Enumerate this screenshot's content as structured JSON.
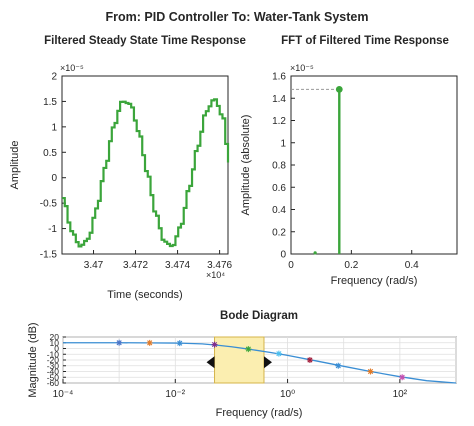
{
  "window_title": "From: PID Controller  To: Water-Tank System",
  "colors": {
    "response": "#3ba53b",
    "bode": "#3a8ed4",
    "band_fill": "#fbeeb0",
    "band_edge": "#d4b44a",
    "axis": "#262626"
  },
  "chart_data": [
    {
      "type": "line",
      "title": "Filtered Steady State Time Response",
      "xlabel": "Time (seconds)",
      "ylabel": "Amplitude",
      "x_exponent_label": "×10⁴",
      "y_exponent_label": "×10⁻⁵",
      "xlim": [
        3.4685,
        3.4764
      ],
      "ylim": [
        -1.5,
        2
      ],
      "xticks": [
        3.47,
        3.472,
        3.474,
        3.476
      ],
      "xtick_labels": [
        "3.47",
        "3.472",
        "3.474",
        "3.476"
      ],
      "yticks": [
        -1.5,
        -1,
        -0.5,
        0,
        0.5,
        1,
        1.5,
        2
      ],
      "ytick_labels": [
        "-1.5",
        "-1",
        "-0.5",
        "0",
        "0.5",
        "1",
        "1.5",
        "2"
      ],
      "series": [
        {
          "style": "staircase",
          "x": [
            3.4685,
            3.4689,
            3.4693,
            3.4697,
            3.4701,
            3.4705,
            3.4709,
            3.4713,
            3.4717,
            3.4721,
            3.4725,
            3.4729,
            3.4733,
            3.4737,
            3.4741,
            3.4745,
            3.4749,
            3.4753,
            3.4757,
            3.4761,
            3.4764
          ],
          "y": [
            -0.4,
            -1.05,
            -1.35,
            -1.2,
            -0.6,
            0.2,
            1.0,
            1.5,
            1.45,
            0.9,
            0.1,
            -0.7,
            -1.25,
            -1.35,
            -0.95,
            -0.2,
            0.6,
            1.3,
            1.55,
            1.2,
            0.3
          ]
        }
      ]
    },
    {
      "type": "stem",
      "title": "FFT of Filtered Time Response",
      "xlabel": "Frequency (rad/s)",
      "ylabel": "Amplitude (absolute)",
      "y_exponent_label": "×10⁻⁵",
      "xlim": [
        0,
        0.55
      ],
      "ylim": [
        0,
        1.6
      ],
      "xticks": [
        0,
        0.2,
        0.4
      ],
      "xtick_labels": [
        "0",
        "0.2",
        "0.4"
      ],
      "yticks": [
        0,
        0.2,
        0.4,
        0.6,
        0.8,
        1,
        1.2,
        1.4,
        1.6
      ],
      "ytick_labels": [
        "0",
        "0.2",
        "0.4",
        "0.6",
        "0.8",
        "1",
        "1.2",
        "1.4",
        "1.6"
      ],
      "stems": [
        {
          "x": 0.08,
          "y": 0.01
        },
        {
          "x": 0.16,
          "y": 1.48
        }
      ],
      "reference_level": 1.48
    },
    {
      "type": "line",
      "title": "Bode Diagram",
      "xlabel": "Frequency (rad/s)",
      "ylabel": "Magnitude (dB)",
      "xscale": "log",
      "xlim": [
        0.0001,
        1000
      ],
      "ylim": [
        -60,
        20
      ],
      "xticks": [
        0.0001,
        0.01,
        1,
        100
      ],
      "xtick_labels": [
        "10⁻⁴",
        "10⁻²",
        "10⁰",
        "10²"
      ],
      "yticks": [
        -60,
        -50,
        -40,
        -30,
        -20,
        -10,
        0,
        10,
        20
      ],
      "ytick_labels": [
        "-60",
        "-50",
        "-40",
        "-30",
        "-20",
        "-10",
        "0",
        "10",
        "20"
      ],
      "band": [
        0.05,
        0.38
      ],
      "series": [
        {
          "x": [
            0.0001,
            0.001,
            0.003,
            0.01,
            0.03,
            0.06,
            0.1,
            0.2,
            0.5,
            1,
            3,
            10,
            30,
            100,
            300,
            1000
          ],
          "y": [
            10,
            10,
            9.8,
            9.5,
            8,
            5.5,
            3,
            -1,
            -7,
            -12,
            -21,
            -31,
            -40,
            -49,
            -56,
            -62
          ]
        }
      ],
      "markers": [
        {
          "x": 0.001,
          "y": 10,
          "color": "#4b76c8"
        },
        {
          "x": 0.0035,
          "y": 9.8,
          "color": "#e07b2a"
        },
        {
          "x": 0.012,
          "y": 9.3,
          "color": "#3a8ed4"
        },
        {
          "x": 0.05,
          "y": 6.8,
          "color": "#7e2f8e"
        },
        {
          "x": 0.2,
          "y": -1,
          "color": "#3ba53b"
        },
        {
          "x": 0.7,
          "y": -9,
          "color": "#4dbeee"
        },
        {
          "x": 2.5,
          "y": -20,
          "color": "#a21d3a"
        },
        {
          "x": 8,
          "y": -30,
          "color": "#3a8ed4"
        },
        {
          "x": 30,
          "y": -40,
          "color": "#e07b2a"
        },
        {
          "x": 110,
          "y": -50,
          "color": "#c44fb0"
        }
      ]
    }
  ]
}
